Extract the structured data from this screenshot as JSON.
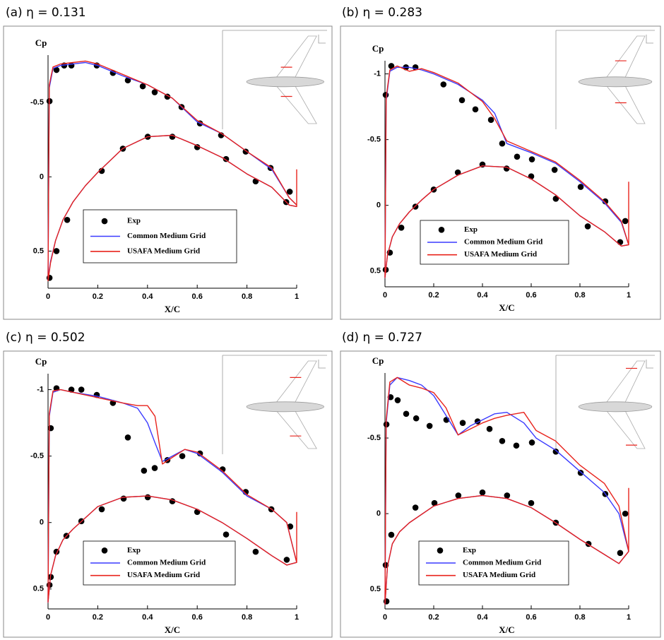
{
  "chart_data": [
    {
      "type": "line",
      "title": "(a) η = 0.131",
      "xlabel": "X/C",
      "ylabel": "Cp",
      "xlim": [
        0,
        1
      ],
      "xticks": [
        0,
        0.2,
        0.4,
        0.6,
        0.8,
        1
      ],
      "ylim": [
        -0.82,
        0.75
      ],
      "yticks": [
        -0.5,
        0,
        0.5
      ],
      "y_inverted": true,
      "series": [
        {
          "name": "Exp",
          "mode": "markers",
          "color": "#000000",
          "x": [
            0.006,
            0.034,
            0.065,
            0.094,
            0.196,
            0.261,
            0.321,
            0.381,
            0.429,
            0.48,
            0.537,
            0.611,
            0.696,
            0.795,
            0.895,
            0.972,
            0.006,
            0.034,
            0.077,
            0.216,
            0.301,
            0.401,
            0.5,
            0.6,
            0.716,
            0.835,
            0.958
          ],
          "values": [
            -0.51,
            -0.72,
            -0.75,
            -0.75,
            -0.75,
            -0.7,
            -0.65,
            -0.61,
            -0.57,
            -0.54,
            -0.47,
            -0.36,
            -0.28,
            -0.17,
            -0.06,
            0.1,
            0.68,
            0.5,
            0.29,
            -0.04,
            -0.19,
            -0.27,
            -0.27,
            -0.2,
            -0.12,
            0.03,
            0.17
          ]
        },
        {
          "name": "Common Medium Grid",
          "mode": "lines",
          "color": "#3a3aff",
          "x": [
            1,
            0.97,
            0.9,
            0.8,
            0.7,
            0.6,
            0.5,
            0.4,
            0.3,
            0.2,
            0.15,
            0.1,
            0.05,
            0.02,
            0.005,
            0,
            0.01,
            0.03,
            0.06,
            0.1,
            0.15,
            0.2,
            0.3,
            0.4,
            0.5,
            0.6,
            0.7,
            0.8,
            0.9,
            0.97,
            1
          ],
          "values": [
            0.19,
            0.14,
            -0.05,
            -0.17,
            -0.29,
            -0.37,
            -0.53,
            -0.62,
            -0.68,
            -0.75,
            -0.77,
            -0.76,
            -0.75,
            -0.73,
            -0.6,
            0.69,
            0.57,
            0.43,
            0.29,
            0.17,
            0.06,
            -0.03,
            -0.19,
            -0.27,
            -0.28,
            -0.21,
            -0.13,
            -0.02,
            0.07,
            0.19,
            0.2
          ]
        },
        {
          "name": "USAFA Medium Grid",
          "mode": "lines",
          "color": "#e8231c",
          "x": [
            1,
            0.97,
            0.9,
            0.8,
            0.7,
            0.6,
            0.5,
            0.4,
            0.3,
            0.2,
            0.15,
            0.1,
            0.05,
            0.02,
            0.005,
            0,
            0.01,
            0.03,
            0.06,
            0.1,
            0.15,
            0.2,
            0.3,
            0.4,
            0.5,
            0.6,
            0.7,
            0.8,
            0.9,
            0.97,
            1,
            1
          ],
          "values": [
            0.19,
            0.14,
            -0.06,
            -0.17,
            -0.29,
            -0.38,
            -0.53,
            -0.62,
            -0.69,
            -0.76,
            -0.78,
            -0.77,
            -0.76,
            -0.74,
            -0.62,
            0.7,
            0.58,
            0.43,
            0.29,
            0.17,
            0.06,
            -0.03,
            -0.19,
            -0.27,
            -0.28,
            -0.21,
            -0.13,
            -0.02,
            0.07,
            0.19,
            0.2,
            -0.05
          ]
        }
      ]
    },
    {
      "type": "line",
      "title": "(b) η = 0.283",
      "xlabel": "X/C",
      "ylabel": "Cp",
      "xlim": [
        0,
        1
      ],
      "xticks": [
        0,
        0.2,
        0.4,
        0.6,
        0.8,
        1
      ],
      "ylim": [
        -1.1,
        0.62
      ],
      "yticks": [
        -1,
        -0.5,
        0,
        0.5
      ],
      "y_inverted": true,
      "series": [
        {
          "name": "Exp",
          "mode": "markers",
          "color": "#000000",
          "x": [
            0.003,
            0.026,
            0.086,
            0.125,
            0.24,
            0.316,
            0.371,
            0.435,
            0.481,
            0.542,
            0.603,
            0.696,
            0.803,
            0.904,
            0.986,
            0.003,
            0.02,
            0.067,
            0.125,
            0.2,
            0.299,
            0.4,
            0.499,
            0.6,
            0.701,
            0.832,
            0.965
          ],
          "values": [
            -0.84,
            -1.06,
            -1.05,
            -1.05,
            -0.92,
            -0.8,
            -0.73,
            -0.65,
            -0.47,
            -0.37,
            -0.35,
            -0.27,
            -0.14,
            -0.03,
            0.12,
            0.49,
            0.36,
            0.17,
            0.01,
            -0.12,
            -0.25,
            -0.31,
            -0.28,
            -0.22,
            -0.05,
            0.16,
            0.28
          ]
        },
        {
          "name": "Common Medium Grid",
          "mode": "lines",
          "color": "#3a3aff",
          "x": [
            1,
            0.97,
            0.9,
            0.8,
            0.7,
            0.6,
            0.5,
            0.45,
            0.4,
            0.3,
            0.2,
            0.15,
            0.1,
            0.05,
            0.02,
            0.005,
            0,
            0.01,
            0.03,
            0.06,
            0.1,
            0.15,
            0.2,
            0.3,
            0.4,
            0.5,
            0.6,
            0.7,
            0.8,
            0.9,
            0.97,
            1
          ],
          "values": [
            0.3,
            0.13,
            -0.02,
            -0.18,
            -0.32,
            -0.4,
            -0.47,
            -0.7,
            -0.8,
            -0.92,
            -1.0,
            -1.03,
            -1.05,
            -1.05,
            -1.02,
            -0.8,
            0.55,
            0.38,
            0.24,
            0.14,
            0.05,
            -0.04,
            -0.12,
            -0.23,
            -0.3,
            -0.29,
            -0.2,
            -0.08,
            0.08,
            0.2,
            0.31,
            0.3
          ]
        },
        {
          "name": "USAFA Medium Grid",
          "mode": "lines",
          "color": "#e8231c",
          "x": [
            1,
            0.97,
            0.9,
            0.8,
            0.7,
            0.6,
            0.5,
            0.45,
            0.4,
            0.3,
            0.2,
            0.15,
            0.1,
            0.05,
            0.02,
            0.005,
            0,
            0.01,
            0.03,
            0.06,
            0.1,
            0.15,
            0.2,
            0.3,
            0.4,
            0.5,
            0.6,
            0.7,
            0.8,
            0.9,
            0.97,
            1,
            1
          ],
          "values": [
            0.3,
            0.12,
            -0.03,
            -0.19,
            -0.33,
            -0.41,
            -0.49,
            -0.66,
            -0.79,
            -0.93,
            -1.01,
            -1.04,
            -1.02,
            -1.06,
            -1.03,
            -0.82,
            0.55,
            0.38,
            0.24,
            0.14,
            0.05,
            -0.04,
            -0.12,
            -0.23,
            -0.3,
            -0.29,
            -0.2,
            -0.08,
            0.08,
            0.2,
            0.31,
            0.3,
            -0.18
          ]
        }
      ]
    },
    {
      "type": "line",
      "title": "(c) η = 0.502",
      "xlabel": "X/C",
      "ylabel": "Cp",
      "xlim": [
        0,
        1
      ],
      "xticks": [
        0,
        0.2,
        0.4,
        0.6,
        0.8,
        1
      ],
      "ylim": [
        -1.12,
        0.65
      ],
      "yticks": [
        -1,
        -0.5,
        0,
        0.5
      ],
      "y_inverted": true,
      "series": [
        {
          "name": "Exp",
          "mode": "markers",
          "color": "#000000",
          "x": [
            0.011,
            0.034,
            0.094,
            0.134,
            0.196,
            0.261,
            0.321,
            0.386,
            0.429,
            0.48,
            0.54,
            0.611,
            0.702,
            0.795,
            0.898,
            0.974,
            0.006,
            0.011,
            0.034,
            0.074,
            0.134,
            0.216,
            0.304,
            0.401,
            0.5,
            0.6,
            0.716,
            0.835,
            0.96
          ],
          "values": [
            -0.71,
            -1.01,
            -1.0,
            -1.0,
            -0.96,
            -0.9,
            -0.64,
            -0.39,
            -0.41,
            -0.47,
            -0.5,
            -0.52,
            -0.4,
            -0.23,
            -0.1,
            0.03,
            0.47,
            0.41,
            0.22,
            0.1,
            -0.01,
            -0.1,
            -0.18,
            -0.19,
            -0.16,
            -0.08,
            0.09,
            0.22,
            0.28
          ]
        },
        {
          "name": "Common Medium Grid",
          "mode": "lines",
          "color": "#3a3aff",
          "x": [
            1,
            0.96,
            0.9,
            0.8,
            0.7,
            0.6,
            0.55,
            0.5,
            0.46,
            0.43,
            0.4,
            0.36,
            0.3,
            0.2,
            0.1,
            0.05,
            0.02,
            0.005,
            0,
            0.01,
            0.03,
            0.06,
            0.1,
            0.2,
            0.3,
            0.4,
            0.5,
            0.6,
            0.7,
            0.8,
            0.9,
            0.96,
            1
          ],
          "values": [
            0.3,
            0.0,
            -0.1,
            -0.2,
            -0.38,
            -0.52,
            -0.55,
            -0.5,
            -0.46,
            -0.6,
            -0.75,
            -0.86,
            -0.9,
            -0.95,
            -0.98,
            -1.0,
            -0.98,
            -0.8,
            0.6,
            0.4,
            0.25,
            0.13,
            0.05,
            -0.12,
            -0.19,
            -0.2,
            -0.17,
            -0.1,
            0.0,
            0.12,
            0.25,
            0.32,
            0.3
          ]
        },
        {
          "name": "USAFA Medium Grid",
          "mode": "lines",
          "color": "#e8231c",
          "x": [
            1,
            0.96,
            0.9,
            0.8,
            0.7,
            0.6,
            0.55,
            0.5,
            0.46,
            0.43,
            0.4,
            0.36,
            0.3,
            0.2,
            0.1,
            0.05,
            0.02,
            0.005,
            0,
            0.01,
            0.03,
            0.06,
            0.1,
            0.2,
            0.3,
            0.4,
            0.5,
            0.6,
            0.7,
            0.8,
            0.9,
            0.96,
            1,
            1
          ],
          "values": [
            0.3,
            0.0,
            -0.1,
            -0.21,
            -0.39,
            -0.53,
            -0.55,
            -0.49,
            -0.44,
            -0.8,
            -0.88,
            -0.88,
            -0.9,
            -0.94,
            -0.98,
            -1.0,
            -0.99,
            -0.82,
            0.6,
            0.4,
            0.25,
            0.13,
            0.05,
            -0.12,
            -0.19,
            -0.2,
            -0.17,
            -0.1,
            0.0,
            0.12,
            0.25,
            0.32,
            0.3,
            -0.08
          ]
        }
      ]
    },
    {
      "type": "line",
      "title": "(d) η = 0.727",
      "xlabel": "X/C",
      "ylabel": "Cp",
      "xlim": [
        0,
        1
      ],
      "xticks": [
        0,
        0.2,
        0.4,
        0.6,
        0.8,
        1
      ],
      "ylim": [
        -0.93,
        0.63
      ],
      "yticks": [
        -0.5,
        0,
        0.5
      ],
      "y_inverted": true,
      "series": [
        {
          "name": "Exp",
          "mode": "markers",
          "color": "#000000",
          "x": [
            0.006,
            0.023,
            0.052,
            0.087,
            0.128,
            0.183,
            0.252,
            0.319,
            0.38,
            0.429,
            0.481,
            0.539,
            0.603,
            0.701,
            0.803,
            0.904,
            0.986,
            0.006,
            0.003,
            0.026,
            0.125,
            0.203,
            0.301,
            0.4,
            0.501,
            0.6,
            0.701,
            0.835,
            0.965
          ],
          "values": [
            -0.59,
            -0.77,
            -0.75,
            -0.66,
            -0.63,
            -0.58,
            -0.62,
            -0.6,
            -0.61,
            -0.56,
            -0.48,
            -0.45,
            -0.47,
            -0.41,
            -0.27,
            -0.13,
            0.0,
            0.58,
            0.34,
            0.14,
            -0.04,
            -0.07,
            -0.12,
            -0.14,
            -0.12,
            -0.07,
            0.06,
            0.2,
            0.26
          ]
        },
        {
          "name": "Common Medium Grid",
          "mode": "lines",
          "color": "#3a3aff",
          "x": [
            1,
            0.96,
            0.9,
            0.8,
            0.7,
            0.62,
            0.57,
            0.5,
            0.45,
            0.4,
            0.35,
            0.3,
            0.25,
            0.2,
            0.15,
            0.1,
            0.05,
            0.02,
            0.005,
            0,
            0.01,
            0.03,
            0.06,
            0.1,
            0.2,
            0.3,
            0.4,
            0.5,
            0.6,
            0.7,
            0.8,
            0.9,
            0.96,
            1
          ],
          "values": [
            0.25,
            0.0,
            -0.14,
            -0.28,
            -0.42,
            -0.5,
            -0.6,
            -0.67,
            -0.66,
            -0.62,
            -0.58,
            -0.52,
            -0.65,
            -0.78,
            -0.85,
            -0.88,
            -0.9,
            -0.85,
            -0.6,
            0.6,
            0.35,
            0.2,
            0.12,
            0.06,
            -0.05,
            -0.1,
            -0.12,
            -0.1,
            -0.04,
            0.06,
            0.17,
            0.27,
            0.33,
            0.25
          ]
        },
        {
          "name": "USAFA Medium Grid",
          "mode": "lines",
          "color": "#e8231c",
          "x": [
            1,
            0.96,
            0.9,
            0.8,
            0.7,
            0.62,
            0.57,
            0.5,
            0.45,
            0.4,
            0.35,
            0.3,
            0.25,
            0.2,
            0.15,
            0.1,
            0.05,
            0.02,
            0.005,
            0,
            0.01,
            0.03,
            0.06,
            0.1,
            0.2,
            0.3,
            0.4,
            0.5,
            0.6,
            0.7,
            0.8,
            0.9,
            0.96,
            1,
            1
          ],
          "values": [
            0.25,
            -0.05,
            -0.2,
            -0.32,
            -0.48,
            -0.55,
            -0.67,
            -0.65,
            -0.63,
            -0.6,
            -0.56,
            -0.52,
            -0.7,
            -0.8,
            -0.83,
            -0.85,
            -0.9,
            -0.87,
            -0.62,
            0.6,
            0.35,
            0.2,
            0.12,
            0.06,
            -0.05,
            -0.1,
            -0.12,
            -0.1,
            -0.04,
            0.06,
            0.17,
            0.27,
            0.33,
            0.25,
            -0.17
          ]
        }
      ]
    }
  ]
}
